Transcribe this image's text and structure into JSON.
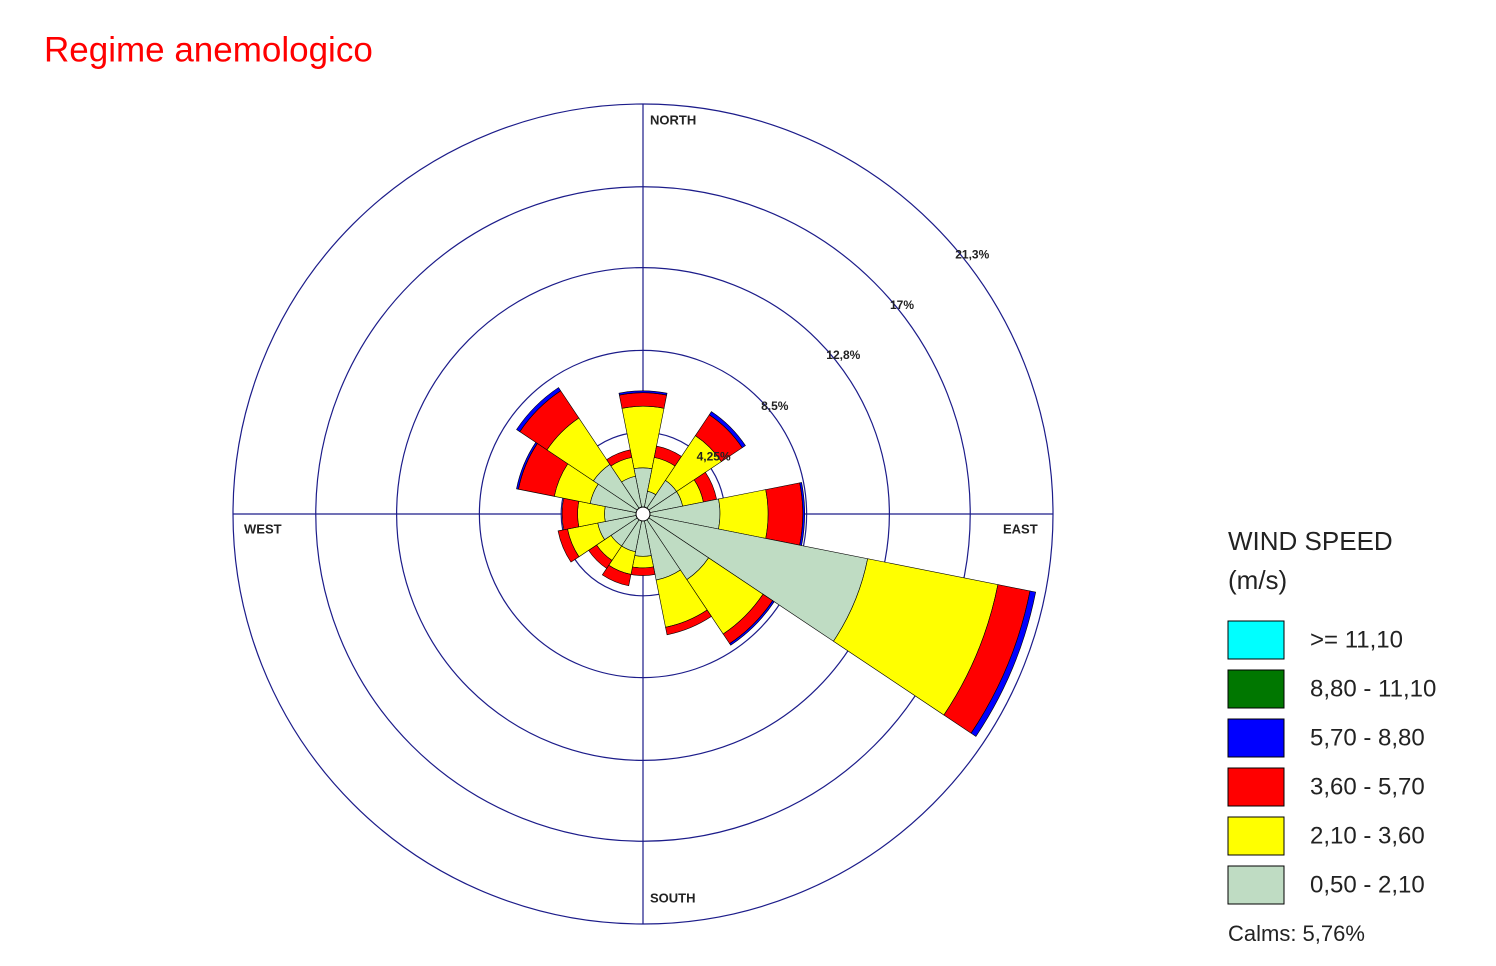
{
  "chart_data": {
    "type": "windrose",
    "title": "Regime anemologico",
    "compass_labels": [
      "NORTH",
      "EAST",
      "SOUTH",
      "WEST"
    ],
    "categories": [
      null,
      null,
      null,
      null,
      null,
      null,
      null,
      null,
      null,
      null,
      null,
      null,
      null,
      null,
      null,
      null
    ],
    "rlim": [
      0,
      21.3
    ],
    "rticks": [
      {
        "value": 4.25,
        "label": "4,25%"
      },
      {
        "value": 8.5,
        "label": "8,5%"
      },
      {
        "value": 12.8,
        "label": "12,8%"
      },
      {
        "value": 17,
        "label": "17%"
      },
      {
        "value": 21.3,
        "label": "21,3%"
      }
    ],
    "legend_title": [
      "WIND SPEED",
      "(m/s)"
    ],
    "calms_label": "Calms: 5,76%",
    "series": [
      {
        "name": ">= 11,10",
        "color": "#00ffff",
        "values": [
          0,
          0,
          0,
          0,
          0,
          0,
          0,
          0,
          0,
          0,
          0,
          0,
          0,
          0,
          0,
          0
        ]
      },
      {
        "name": "8,80 - 11,10",
        "color": "#007700",
        "values": [
          0,
          0,
          0,
          0,
          0,
          0,
          0,
          0,
          0,
          0,
          0,
          0,
          0,
          0,
          0,
          0
        ]
      },
      {
        "name": "5,70 - 8,80",
        "color": "#0000ff",
        "values": [
          0.1,
          0,
          0.2,
          0,
          0.1,
          0.3,
          0.1,
          0,
          0,
          0,
          0,
          0,
          0,
          0.1,
          0.2,
          0
        ]
      },
      {
        "name": "3,60 - 5,70",
        "color": "#ff0000",
        "values": [
          0.7,
          0.6,
          1.3,
          0.7,
          1.8,
          1.7,
          0.6,
          0.4,
          0.4,
          0.6,
          0.5,
          0.5,
          0.8,
          1.9,
          1.7,
          0.4
        ]
      },
      {
        "name": "2,10 - 3,60",
        "color": "#ffff00",
        "values": [
          3.2,
          1.8,
          2.8,
          1.1,
          2.5,
          6.9,
          3.4,
          2.5,
          0.6,
          1.2,
          0.9,
          1.6,
          1.4,
          1.9,
          2.9,
          1.0
        ]
      },
      {
        "name": "0,50 - 2,10",
        "color": "#bfdcc3",
        "values": [
          2.4,
          1.2,
          2.1,
          2.1,
          4.0,
          11.9,
          4.1,
          3.5,
          2.2,
          2.0,
          2.0,
          2.4,
          2.0,
          2.8,
          3.1,
          2.0
        ]
      }
    ]
  }
}
